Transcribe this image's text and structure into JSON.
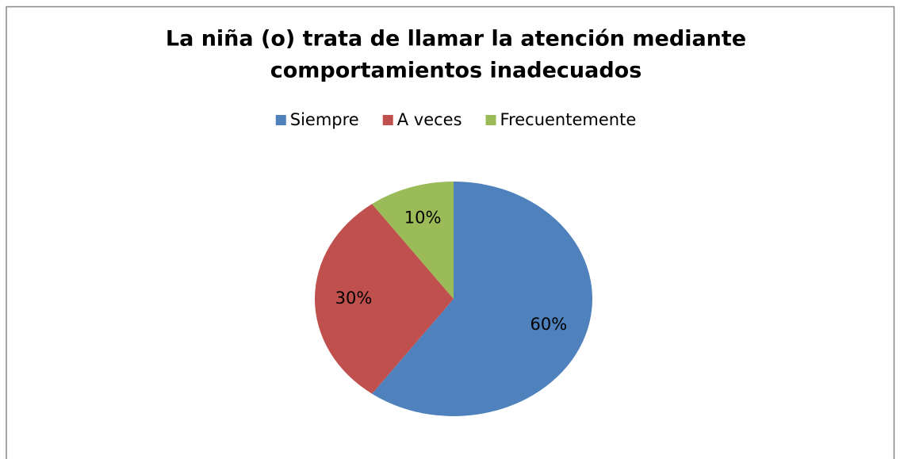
{
  "chart_data": {
    "type": "pie",
    "title": [
      "La niña (o) trata de llamar la atención mediante",
      "comportamientos inadecuados"
    ],
    "categories": [
      "Siempre",
      "A veces",
      "Frecuentemente"
    ],
    "values": [
      60,
      30,
      10
    ],
    "value_labels": [
      "60%",
      "30%",
      "10%"
    ],
    "colors": [
      "#4f81bd",
      "#c0504d",
      "#9bbb59"
    ],
    "legend": "top"
  }
}
